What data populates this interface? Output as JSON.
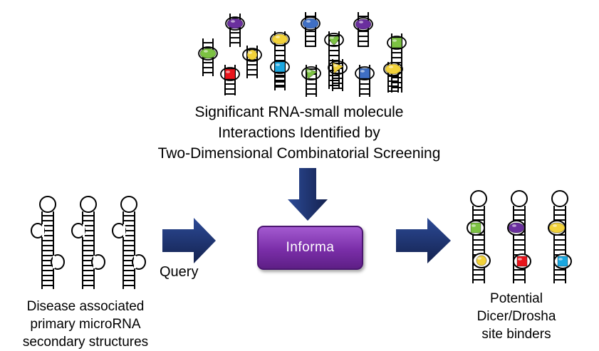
{
  "top_title": [
    "Significant RNA-small molecule",
    "Interactions Identified by",
    "Two-Dimensional Combinatorial Screening"
  ],
  "left_label": [
    "Disease associated",
    "primary microRNA",
    "secondary structures"
  ],
  "right_label": [
    "Potential",
    "Dicer/Drosha",
    "site binders"
  ],
  "query_label": "Query",
  "informa_label": "Informa",
  "colors": {
    "arrow": "#1c2f6b",
    "box": "#7a2ea8",
    "green": "#7cc242",
    "purple": "#6a2f9e",
    "yellow": "#f2d23a",
    "red": "#e8141b",
    "cyan": "#1aa7e0",
    "blue": "#3f6fc4"
  }
}
